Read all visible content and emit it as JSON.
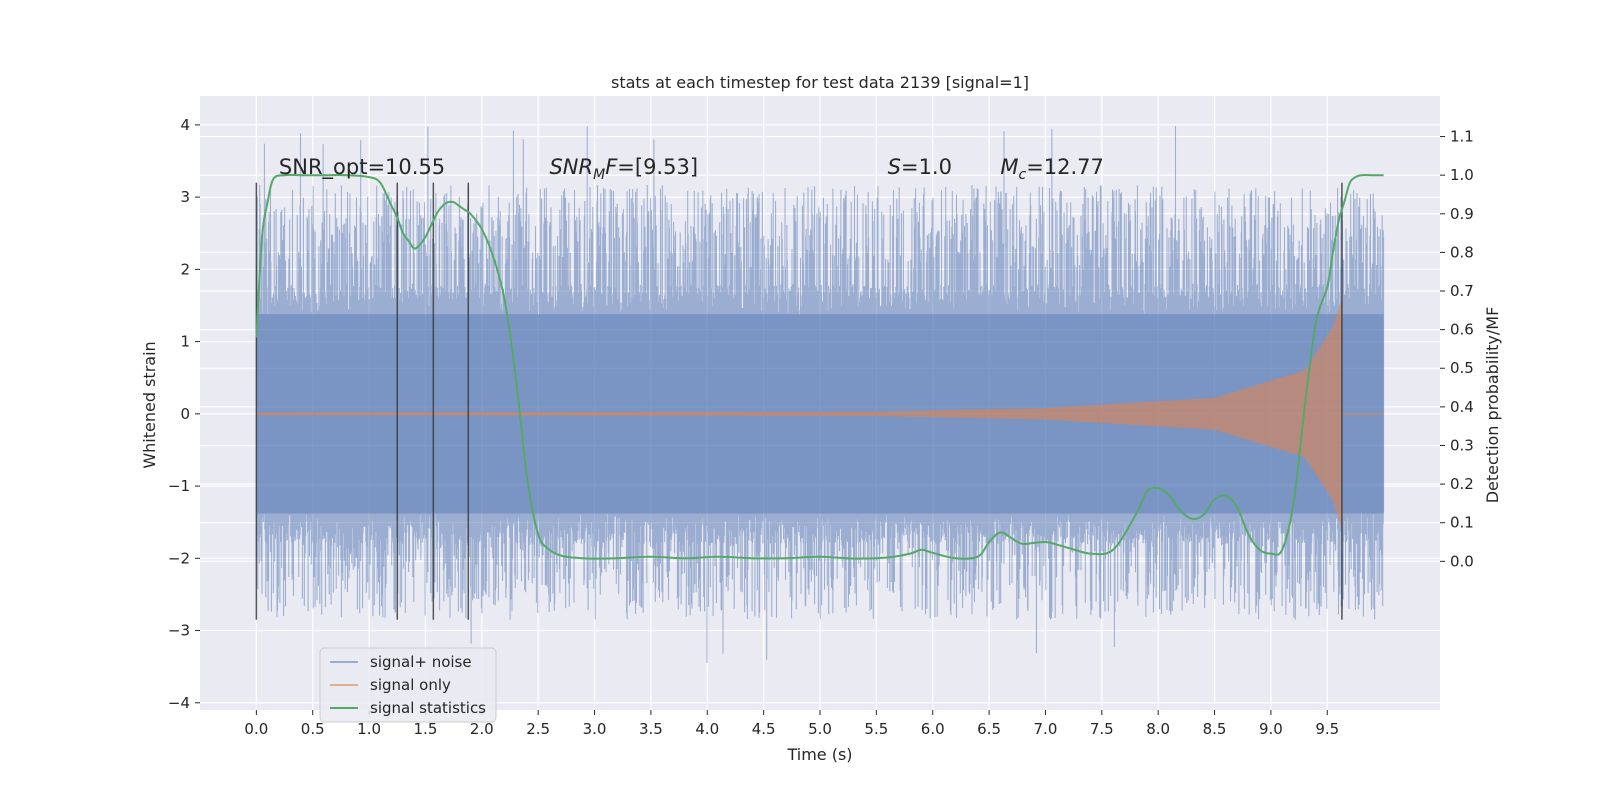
{
  "chart_data": {
    "type": "line",
    "title": "stats at each timestep for test data 2139 [signal=1]",
    "xlabel": "Time (s)",
    "ylabel": "Whitened strain",
    "ylabel_right": "Detection probability/MF",
    "xlim": [
      -0.5,
      10.5
    ],
    "ylim": [
      -4.1,
      4.4
    ],
    "ylim_right": [
      -0.385,
      1.205
    ],
    "x_ticks": [
      "0.0",
      "0.5",
      "1.0",
      "1.5",
      "2.0",
      "2.5",
      "3.0",
      "3.5",
      "4.0",
      "4.5",
      "5.0",
      "5.5",
      "6.0",
      "6.5",
      "7.0",
      "7.5",
      "8.0",
      "8.5",
      "9.0",
      "9.5"
    ],
    "y_ticks": [
      "−4",
      "−3",
      "−2",
      "−1",
      "0",
      "1",
      "2",
      "3",
      "4"
    ],
    "y_ticks_right": [
      "0.0",
      "0.1",
      "0.2",
      "0.3",
      "0.4",
      "0.5",
      "0.6",
      "0.7",
      "0.8",
      "0.9",
      "1.0",
      "1.1"
    ],
    "grid": true,
    "legend_position": "lower-left",
    "annotations": [
      {
        "text": "SNR_opt=10.55",
        "x": 0.2
      },
      {
        "text": "SNR_MF=[9.53]",
        "x": 2.6
      },
      {
        "text": "S=1.0",
        "x": 5.6
      },
      {
        "text": "M_c=12.77",
        "x": 6.6
      }
    ],
    "vertical_lines": {
      "x": [
        0.0,
        1.25,
        1.57,
        1.88,
        9.63
      ],
      "y_range": [
        -2.85,
        3.2
      ]
    },
    "series": [
      {
        "name": "signal+ noise",
        "color": "#4c72b0",
        "x_range": [
          0.0,
          10.0
        ],
        "envelope_core": 1.35,
        "envelope_peak_typical": [
          2.0,
          3.3
        ],
        "max_peak": 4.05
      },
      {
        "name": "signal only",
        "color": "#dd8452",
        "chirp_amplitude": [
          [
            0.0,
            0.02
          ],
          [
            5.5,
            0.03
          ],
          [
            7.0,
            0.08
          ],
          [
            8.5,
            0.22
          ],
          [
            9.3,
            0.6
          ],
          [
            9.55,
            1.2
          ],
          [
            9.63,
            1.6
          ]
        ],
        "merger_time": 9.63
      },
      {
        "name": "signal statistics",
        "color": "#55a868",
        "axis": "right",
        "x": [
          0.0,
          0.05,
          0.1,
          0.15,
          0.25,
          0.4,
          0.6,
          0.8,
          1.0,
          1.1,
          1.2,
          1.25,
          1.3,
          1.35,
          1.4,
          1.45,
          1.5,
          1.55,
          1.6,
          1.65,
          1.7,
          1.75,
          1.8,
          1.85,
          1.9,
          2.0,
          2.1,
          2.2,
          2.3,
          2.4,
          2.5,
          2.6,
          2.7,
          2.8,
          2.9,
          3.0,
          3.2,
          3.5,
          3.8,
          4.1,
          4.4,
          4.7,
          5.0,
          5.3,
          5.6,
          5.8,
          5.9,
          6.0,
          6.2,
          6.4,
          6.5,
          6.6,
          6.7,
          6.8,
          7.0,
          7.2,
          7.4,
          7.6,
          7.8,
          7.9,
          8.0,
          8.1,
          8.2,
          8.3,
          8.4,
          8.5,
          8.6,
          8.7,
          8.8,
          8.9,
          9.0,
          9.1,
          9.2,
          9.3,
          9.4,
          9.5,
          9.55,
          9.6,
          9.65,
          9.7,
          9.75,
          9.8,
          9.9,
          10.0
        ],
        "values": [
          0.58,
          0.84,
          0.93,
          0.99,
          1.0,
          1.0,
          1.0,
          1.0,
          0.995,
          0.98,
          0.92,
          0.89,
          0.85,
          0.83,
          0.81,
          0.82,
          0.84,
          0.87,
          0.9,
          0.92,
          0.93,
          0.93,
          0.92,
          0.91,
          0.9,
          0.86,
          0.79,
          0.68,
          0.48,
          0.22,
          0.07,
          0.03,
          0.015,
          0.01,
          0.008,
          0.007,
          0.008,
          0.012,
          0.008,
          0.012,
          0.008,
          0.008,
          0.012,
          0.007,
          0.01,
          0.02,
          0.03,
          0.022,
          0.008,
          0.012,
          0.05,
          0.075,
          0.06,
          0.045,
          0.05,
          0.035,
          0.02,
          0.03,
          0.12,
          0.18,
          0.19,
          0.17,
          0.13,
          0.11,
          0.12,
          0.16,
          0.17,
          0.14,
          0.07,
          0.03,
          0.02,
          0.03,
          0.15,
          0.4,
          0.62,
          0.71,
          0.8,
          0.88,
          0.93,
          0.98,
          0.995,
          1.0,
          1.0,
          1.0
        ]
      }
    ]
  }
}
